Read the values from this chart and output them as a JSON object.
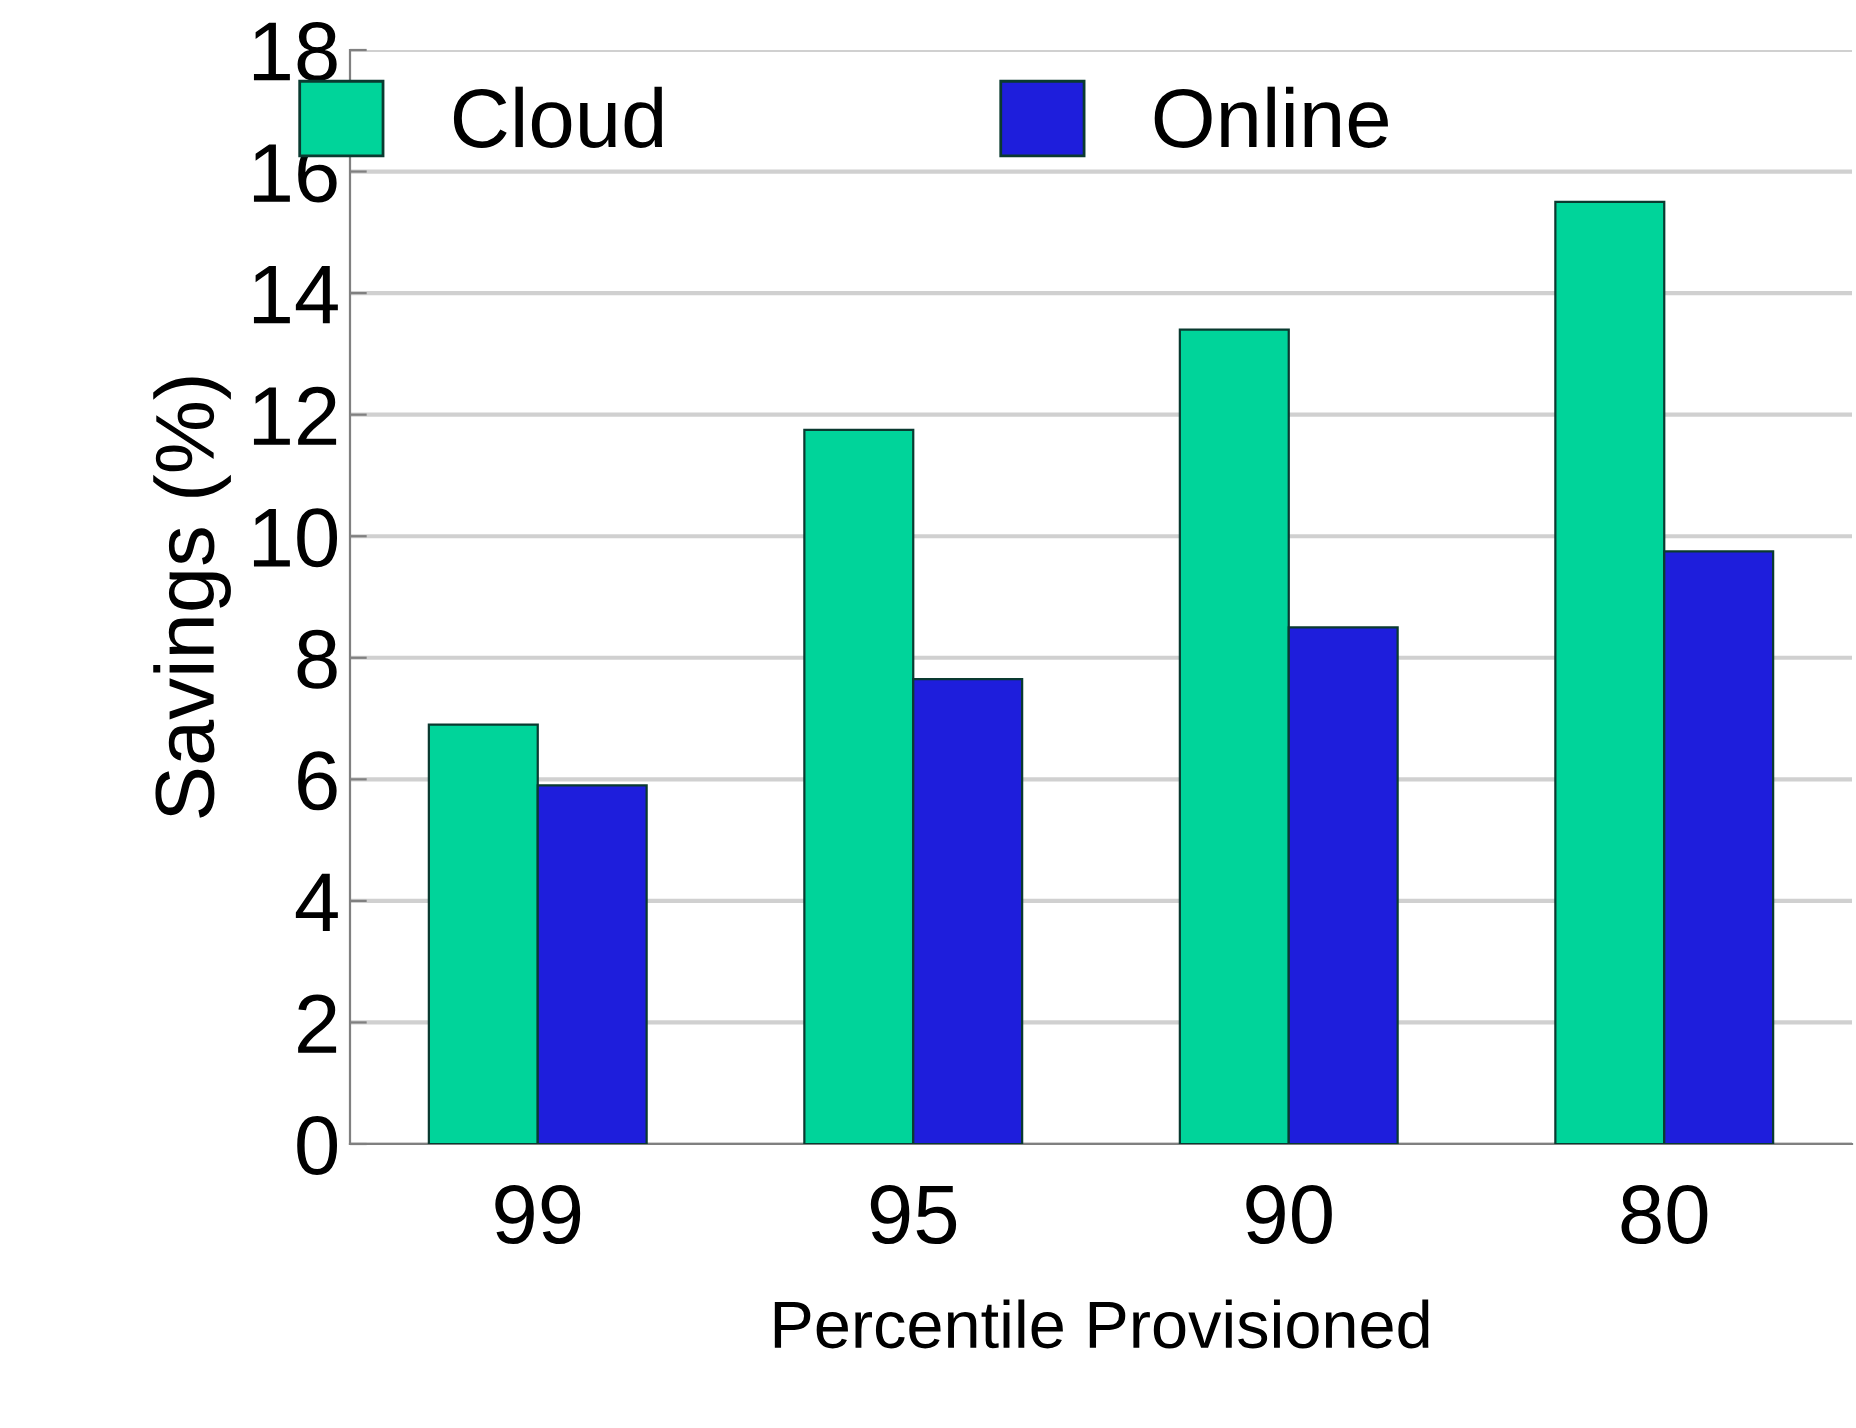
{
  "chart_data": {
    "type": "bar",
    "xlabel": "Percentile Provisioned",
    "ylabel": "Savings (%)",
    "categories": [
      "99",
      "95",
      "90",
      "80"
    ],
    "series": [
      {
        "name": "Cloud",
        "color": "#00d49a",
        "values": [
          6.9,
          11.75,
          13.4,
          15.5
        ]
      },
      {
        "name": "Online",
        "color": "#1e1edc",
        "values": [
          5.9,
          7.65,
          8.5,
          9.75
        ]
      }
    ],
    "ylim": [
      0,
      18
    ],
    "yticks": [
      0,
      2,
      4,
      6,
      8,
      10,
      12,
      14,
      16,
      18
    ],
    "grid": "y",
    "legend": "top"
  }
}
